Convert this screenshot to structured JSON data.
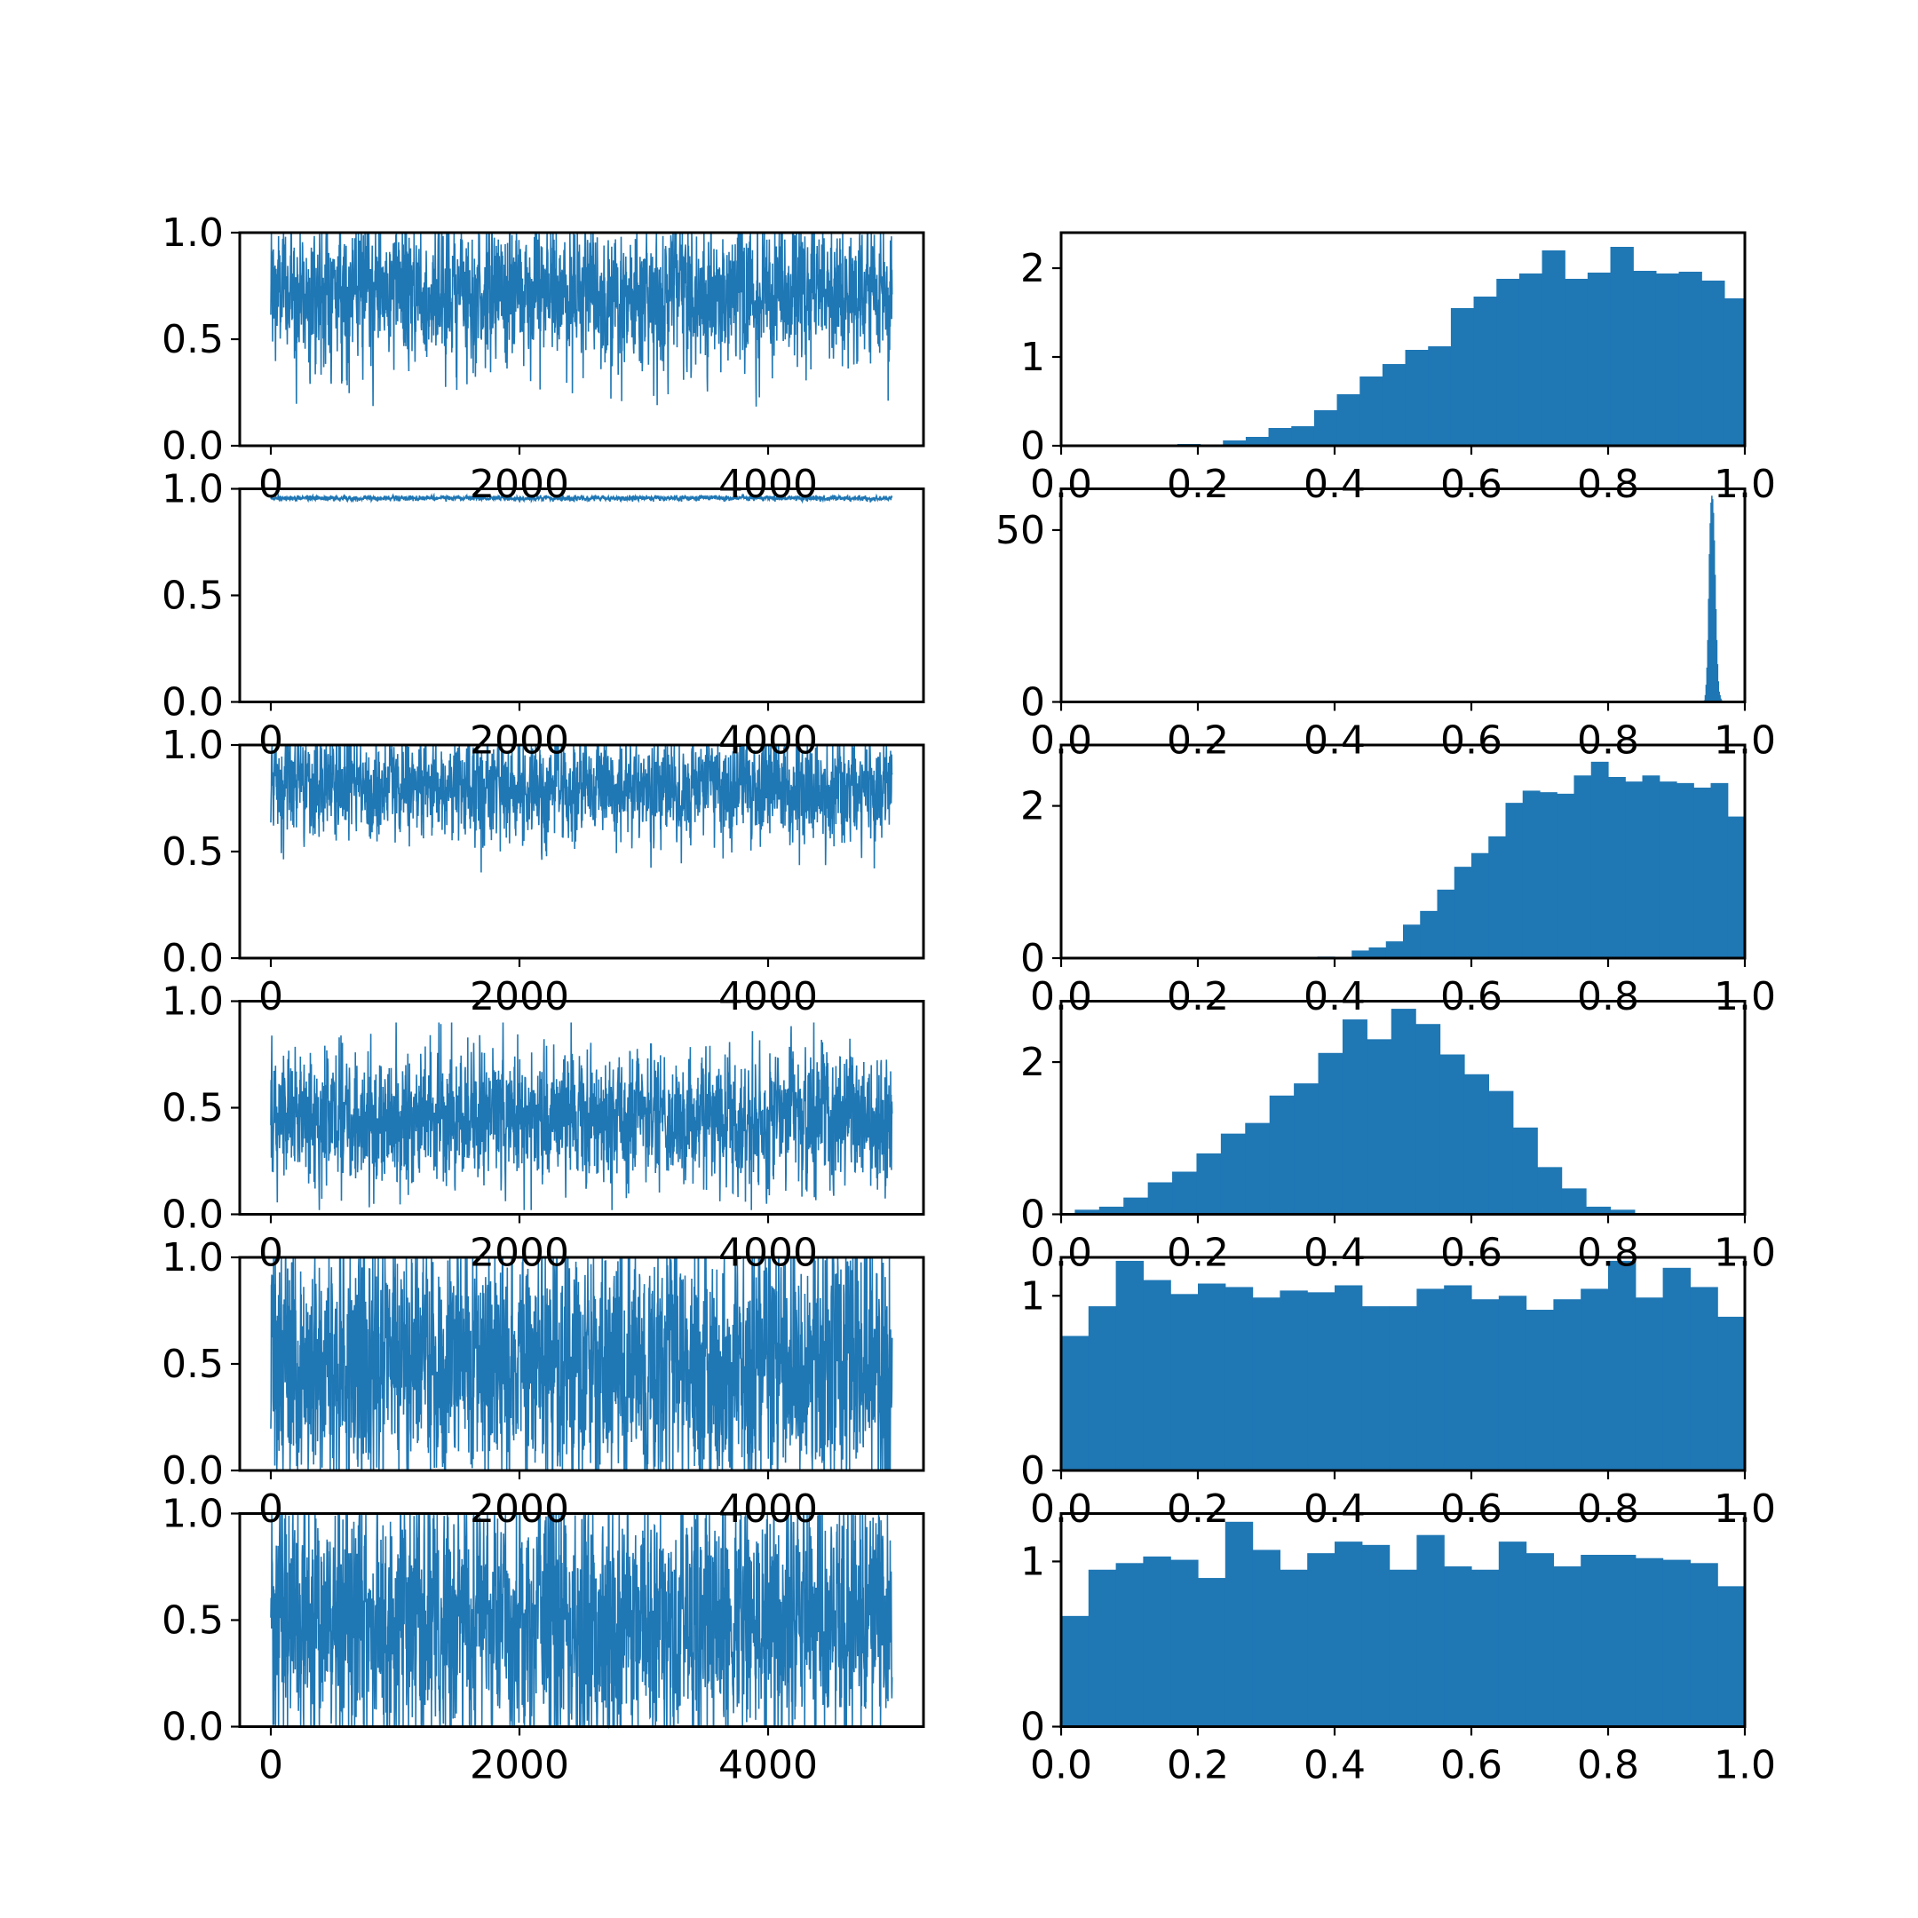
{
  "chart_data": [
    {
      "type": "line",
      "panel": "trace-1",
      "x_range": [
        0,
        4999
      ],
      "xlim": [
        -250,
        5250
      ],
      "ylim": [
        0,
        1
      ],
      "xticks": [
        0,
        2000,
        4000
      ],
      "yticks": [
        0,
        0.5,
        1.0
      ],
      "xtick_labels": [
        "0",
        "2000",
        "4000"
      ],
      "ytick_labels": [
        "0.0",
        "0.5",
        "1.0"
      ],
      "trace_mean": 0.72,
      "trace_sd": 0.16,
      "trace_min": 0.17,
      "trace_max": 1.0
    },
    {
      "type": "bar",
      "panel": "hist-1",
      "xlim": [
        0,
        1
      ],
      "ylim": [
        0,
        2.4
      ],
      "xticks": [
        0,
        0.2,
        0.4,
        0.6,
        0.8,
        1.0
      ],
      "yticks": [
        0,
        1,
        2
      ],
      "xtick_labels": [
        "0.0",
        "0.2",
        "0.4",
        "0.6",
        "0.8",
        "1.0"
      ],
      "ytick_labels": [
        "0",
        "1",
        "2"
      ],
      "bin_edges": [
        0.17,
        0.2033,
        0.2367,
        0.27,
        0.3033,
        0.3367,
        0.37,
        0.4033,
        0.4367,
        0.47,
        0.5033,
        0.5367,
        0.57,
        0.6033,
        0.6367,
        0.67,
        0.7033,
        0.7367,
        0.77,
        0.8033,
        0.8367,
        0.87,
        0.9033,
        0.9367,
        0.97,
        1.0
      ],
      "values": [
        0.02,
        0.0,
        0.06,
        0.1,
        0.2,
        0.22,
        0.4,
        0.58,
        0.78,
        0.92,
        1.08,
        1.12,
        1.55,
        1.68,
        1.88,
        1.94,
        2.2,
        1.88,
        1.95,
        2.24,
        1.97,
        1.94,
        1.96,
        1.86,
        1.66
      ]
    },
    {
      "type": "line",
      "panel": "trace-2",
      "x_range": [
        0,
        4999
      ],
      "xlim": [
        -250,
        5250
      ],
      "ylim": [
        0,
        1
      ],
      "xticks": [
        0,
        2000,
        4000
      ],
      "yticks": [
        0,
        0.5,
        1.0
      ],
      "xtick_labels": [
        "0",
        "2000",
        "4000"
      ],
      "ytick_labels": [
        "0.0",
        "0.5",
        "1.0"
      ],
      "trace_mean": 0.956,
      "trace_sd": 0.006,
      "trace_min": 0.94,
      "trace_max": 0.97
    },
    {
      "type": "bar",
      "panel": "hist-2",
      "xlim": [
        0,
        1
      ],
      "ylim": [
        0,
        62
      ],
      "xticks": [
        0,
        0.2,
        0.4,
        0.6,
        0.8,
        1.0
      ],
      "yticks": [
        0,
        50
      ],
      "xtick_labels": [
        "0.0",
        "0.2",
        "0.4",
        "0.6",
        "0.8",
        "1.0"
      ],
      "ytick_labels": [
        "0",
        "50"
      ],
      "bin_edges": [
        0.94,
        0.9412,
        0.9424,
        0.9436,
        0.9448,
        0.946,
        0.9472,
        0.9484,
        0.9496,
        0.9508,
        0.952,
        0.9532,
        0.9544,
        0.9556,
        0.9568,
        0.958,
        0.9592,
        0.9604,
        0.9616,
        0.9628,
        0.964,
        0.9652,
        0.9664,
        0.9676,
        0.9688,
        0.97
      ],
      "values": [
        0.5,
        2,
        5,
        10,
        18,
        30,
        43,
        52,
        58,
        60,
        59,
        55,
        47,
        37,
        27,
        18,
        11,
        6,
        3,
        2,
        1,
        0.5,
        0.3,
        0.2,
        0.1
      ]
    },
    {
      "type": "line",
      "panel": "trace-3",
      "x_range": [
        0,
        4999
      ],
      "xlim": [
        -250,
        5250
      ],
      "ylim": [
        0,
        1
      ],
      "xticks": [
        0,
        2000,
        4000
      ],
      "yticks": [
        0,
        0.5,
        1.0
      ],
      "xtick_labels": [
        "0",
        "2000",
        "4000"
      ],
      "ytick_labels": [
        "0.0",
        "0.5",
        "1.0"
      ],
      "trace_mean": 0.8,
      "trace_sd": 0.12,
      "trace_min": 0.38,
      "trace_max": 1.0
    },
    {
      "type": "bar",
      "panel": "hist-3",
      "xlim": [
        0,
        1
      ],
      "ylim": [
        0,
        2.8
      ],
      "xticks": [
        0,
        0.2,
        0.4,
        0.6,
        0.8,
        1.0
      ],
      "yticks": [
        0,
        2
      ],
      "xtick_labels": [
        "0.0",
        "0.2",
        "0.4",
        "0.6",
        "0.8",
        "1.0"
      ],
      "ytick_labels": [
        "0",
        "2"
      ],
      "bin_edges": [
        0.375,
        0.4,
        0.425,
        0.45,
        0.475,
        0.5,
        0.525,
        0.55,
        0.575,
        0.6,
        0.625,
        0.65,
        0.675,
        0.7,
        0.725,
        0.75,
        0.775,
        0.8,
        0.825,
        0.85,
        0.875,
        0.9,
        0.925,
        0.95,
        0.975,
        1.0
      ],
      "values": [
        0.02,
        0.01,
        0.1,
        0.14,
        0.22,
        0.44,
        0.62,
        0.9,
        1.2,
        1.38,
        1.6,
        2.04,
        2.2,
        2.18,
        2.16,
        2.4,
        2.58,
        2.38,
        2.32,
        2.4,
        2.32,
        2.3,
        2.24,
        2.3,
        1.86
      ]
    },
    {
      "type": "line",
      "panel": "trace-4",
      "x_range": [
        0,
        4999
      ],
      "xlim": [
        -250,
        5250
      ],
      "ylim": [
        0,
        1
      ],
      "xticks": [
        0,
        2000,
        4000
      ],
      "yticks": [
        0,
        0.5,
        1.0
      ],
      "xtick_labels": [
        "0",
        "2000",
        "4000"
      ],
      "ytick_labels": [
        "0.0",
        "0.5",
        "1.0"
      ],
      "trace_mean": 0.45,
      "trace_sd": 0.15,
      "trace_min": 0.02,
      "trace_max": 0.9
    },
    {
      "type": "bar",
      "panel": "hist-4",
      "xlim": [
        0,
        1
      ],
      "ylim": [
        0,
        2.8
      ],
      "xticks": [
        0,
        0.2,
        0.4,
        0.6,
        0.8,
        1.0
      ],
      "yticks": [
        0,
        2
      ],
      "xtick_labels": [
        "0.0",
        "0.2",
        "0.4",
        "0.6",
        "0.8",
        "1.0"
      ],
      "ytick_labels": [
        "0",
        "2"
      ],
      "bin_edges": [
        0.02,
        0.0556,
        0.0912,
        0.1268,
        0.1624,
        0.198,
        0.2336,
        0.2692,
        0.3048,
        0.3404,
        0.376,
        0.4116,
        0.4472,
        0.4828,
        0.5184,
        0.554,
        0.5896,
        0.6252,
        0.6608,
        0.6964,
        0.732,
        0.7676,
        0.8032,
        0.8388,
        0.8744,
        0.91
      ],
      "values": [
        0.06,
        0.1,
        0.22,
        0.42,
        0.56,
        0.8,
        1.06,
        1.2,
        1.56,
        1.72,
        2.12,
        2.56,
        2.3,
        2.7,
        2.5,
        2.1,
        1.84,
        1.62,
        1.14,
        0.62,
        0.34,
        0.1,
        0.06,
        0.0,
        0.0
      ]
    },
    {
      "type": "line",
      "panel": "trace-5",
      "x_range": [
        0,
        4999
      ],
      "xlim": [
        -250,
        5250
      ],
      "ylim": [
        0,
        1
      ],
      "xticks": [
        0,
        2000,
        4000
      ],
      "yticks": [
        0,
        0.5,
        1.0
      ],
      "xtick_labels": [
        "0",
        "2000",
        "4000"
      ],
      "ytick_labels": [
        "0.0",
        "0.5",
        "1.0"
      ],
      "trace_mean": 0.5,
      "trace_sd": 0.29,
      "trace_min": 0.0,
      "trace_max": 1.0
    },
    {
      "type": "bar",
      "panel": "hist-5",
      "xlim": [
        0,
        1
      ],
      "ylim": [
        0,
        1.22
      ],
      "xticks": [
        0,
        0.2,
        0.4,
        0.6,
        0.8,
        1.0
      ],
      "yticks": [
        0,
        1
      ],
      "xtick_labels": [
        "0.0",
        "0.2",
        "0.4",
        "0.6",
        "0.8",
        "1.0"
      ],
      "ytick_labels": [
        "0",
        "1"
      ],
      "bin_edges": [
        0.0,
        0.04,
        0.08,
        0.12,
        0.16,
        0.2,
        0.24,
        0.28,
        0.32,
        0.36,
        0.4,
        0.44,
        0.48,
        0.52,
        0.56,
        0.6,
        0.64,
        0.68,
        0.72,
        0.76,
        0.8,
        0.84,
        0.88,
        0.92,
        0.96,
        1.0
      ],
      "values": [
        0.77,
        0.94,
        1.2,
        1.09,
        1.01,
        1.07,
        1.05,
        0.99,
        1.03,
        1.02,
        1.06,
        0.94,
        0.94,
        1.04,
        1.06,
        0.98,
        1.0,
        0.92,
        0.98,
        1.04,
        1.2,
        0.99,
        1.16,
        1.05,
        0.88
      ]
    },
    {
      "type": "line",
      "panel": "trace-6",
      "x_range": [
        0,
        4999
      ],
      "xlim": [
        -250,
        5250
      ],
      "ylim": [
        0,
        1
      ],
      "xticks": [
        0,
        2000,
        4000
      ],
      "yticks": [
        0,
        0.5,
        1.0
      ],
      "xtick_labels": [
        "0",
        "2000",
        "4000"
      ],
      "ytick_labels": [
        "0.0",
        "0.5",
        "1.0"
      ],
      "trace_mean": 0.5,
      "trace_sd": 0.29,
      "trace_min": 0.0,
      "trace_max": 1.0
    },
    {
      "type": "bar",
      "panel": "hist-6",
      "xlim": [
        0,
        1
      ],
      "ylim": [
        0,
        1.29
      ],
      "xticks": [
        0,
        0.2,
        0.4,
        0.6,
        0.8,
        1.0
      ],
      "yticks": [
        0,
        1
      ],
      "xtick_labels": [
        "0.0",
        "0.2",
        "0.4",
        "0.6",
        "0.8",
        "1.0"
      ],
      "ytick_labels": [
        "0",
        "1"
      ],
      "bin_edges": [
        0.0,
        0.04,
        0.08,
        0.12,
        0.16,
        0.2,
        0.24,
        0.28,
        0.32,
        0.36,
        0.4,
        0.44,
        0.48,
        0.52,
        0.56,
        0.6,
        0.64,
        0.68,
        0.72,
        0.76,
        0.8,
        0.84,
        0.88,
        0.92,
        0.96,
        1.0
      ],
      "values": [
        0.67,
        0.95,
        0.99,
        1.03,
        1.01,
        0.9,
        1.24,
        1.07,
        0.95,
        1.05,
        1.12,
        1.1,
        0.95,
        1.16,
        0.97,
        0.95,
        1.12,
        1.05,
        0.97,
        1.04,
        1.04,
        1.02,
        1.01,
        0.99,
        0.85
      ]
    }
  ],
  "colors": {
    "series": "#1f77b4",
    "axes": "#000000",
    "background": "#ffffff"
  },
  "tick_label_color": "#000000"
}
